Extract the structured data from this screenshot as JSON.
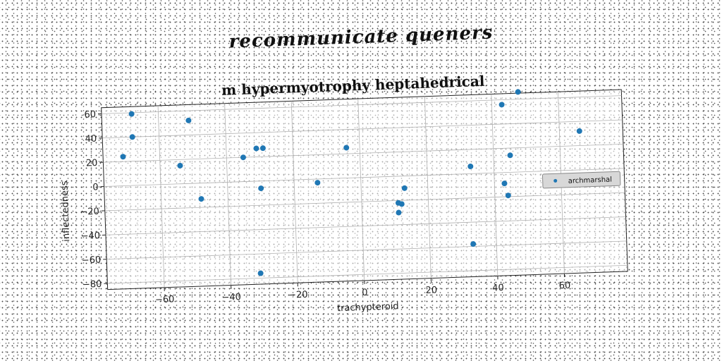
{
  "heading": "recommunicate queners",
  "chart_data": {
    "type": "scatter",
    "title": "m hypermyotrophy heptahedrical",
    "xlabel": "trachypteroid",
    "ylabel": "inflectedness",
    "xlim": [
      -77,
      79
    ],
    "ylim": [
      -85,
      65
    ],
    "xticks": [
      -60,
      -40,
      -20,
      0,
      20,
      40,
      60
    ],
    "yticks": [
      -80,
      -60,
      -40,
      -20,
      0,
      20,
      40,
      60
    ],
    "xtick_labels": [
      "−60",
      "−40",
      "−20",
      "0",
      "20",
      "40",
      "60"
    ],
    "ytick_labels": [
      "−80",
      "−60",
      "−40",
      "−20",
      "0",
      "20",
      "40",
      "60"
    ],
    "grid": true,
    "legend_position": "right",
    "color": "#1f77b4",
    "series": [
      {
        "name": "archmarshal",
        "points": [
          [
            -68,
            59
          ],
          [
            -68,
            40
          ],
          [
            -71,
            24
          ],
          [
            -51,
            52
          ],
          [
            -54,
            15
          ],
          [
            -48,
            -13
          ],
          [
            -31,
            27
          ],
          [
            -29,
            27
          ],
          [
            -35,
            20
          ],
          [
            -30,
            -6
          ],
          [
            -31,
            -76
          ],
          [
            -13,
            -3
          ],
          [
            -4,
            25
          ],
          [
            11,
            -22
          ],
          [
            12,
            -23
          ],
          [
            11,
            -30
          ],
          [
            13,
            -10
          ],
          [
            33,
            6
          ],
          [
            33,
            -58
          ],
          [
            43,
            56
          ],
          [
            48,
            66
          ],
          [
            45,
            14
          ],
          [
            43,
            -9
          ],
          [
            44,
            -19
          ],
          [
            66,
            32
          ],
          [
            71,
            -5
          ]
        ]
      }
    ]
  }
}
